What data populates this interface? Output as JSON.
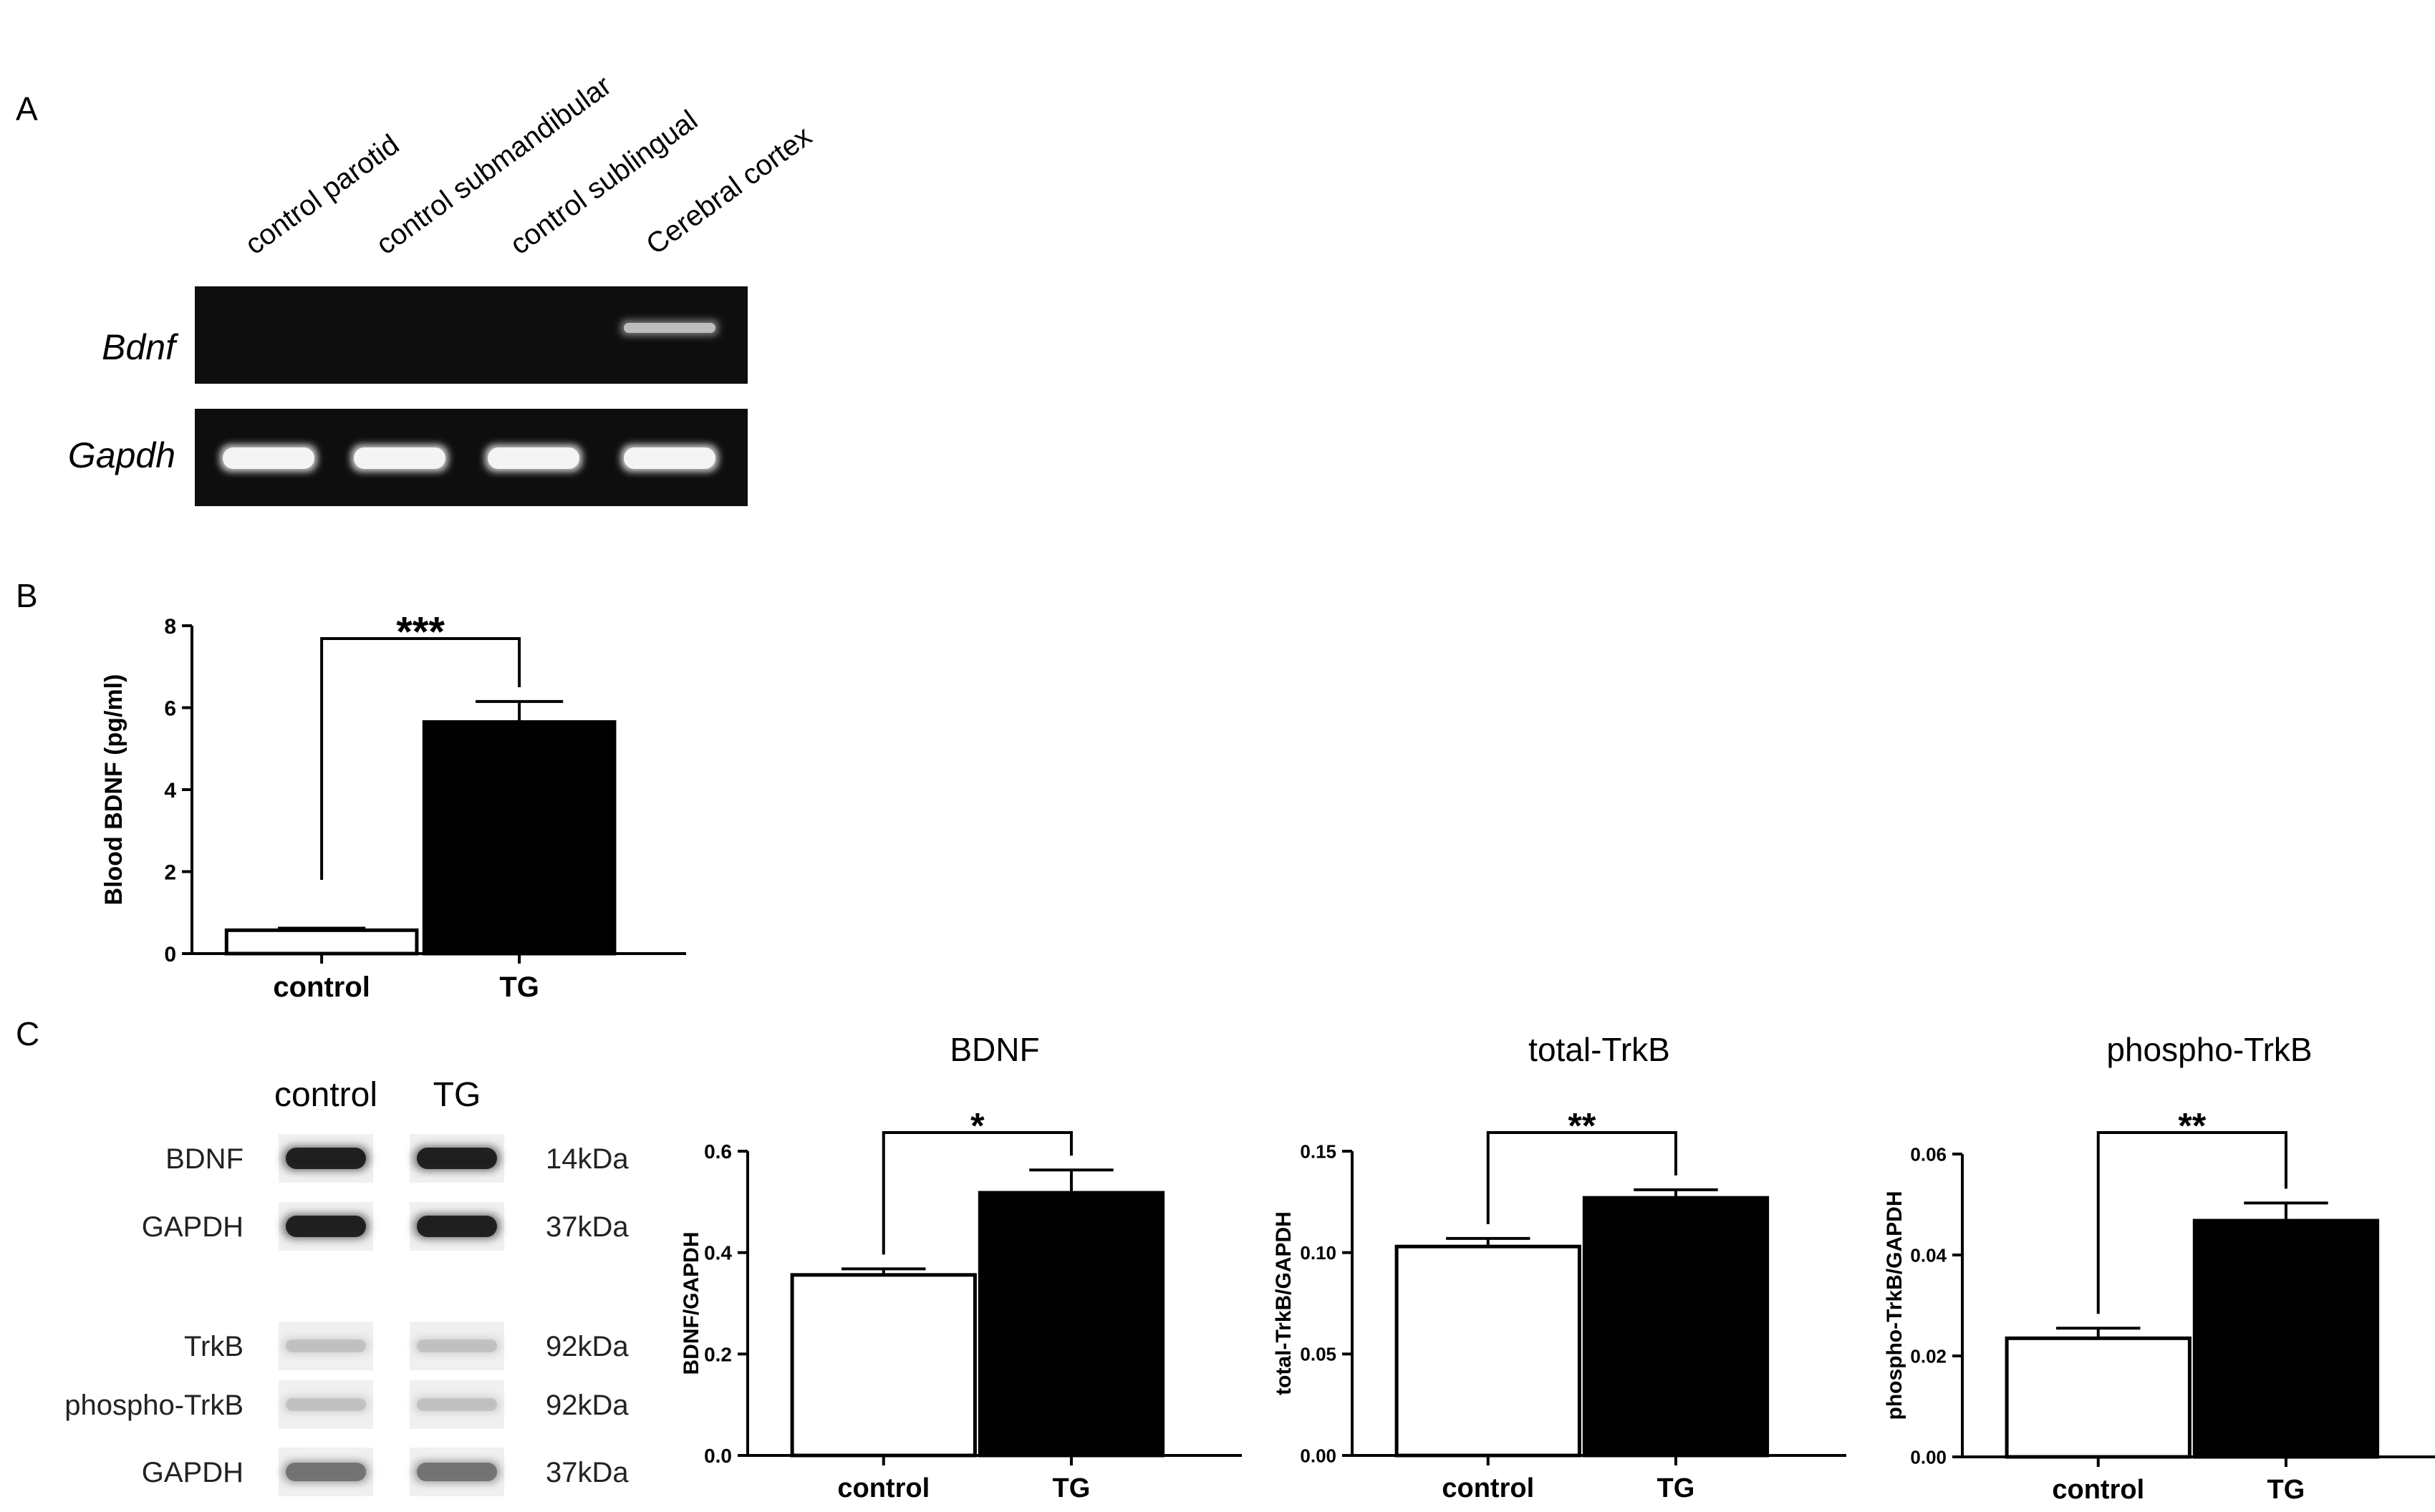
{
  "panel_labels": {
    "a": "A",
    "b": "B",
    "c": "C"
  },
  "panel_a": {
    "lanes": [
      "control parotid",
      "control submandibular",
      "control sublingual",
      "Cerebral cortex"
    ],
    "genes": [
      {
        "label": "Bdnf",
        "band_lanes": [
          0,
          0,
          0,
          1
        ]
      },
      {
        "label": "Gapdh",
        "band_lanes": [
          1,
          1,
          1,
          1
        ]
      }
    ]
  },
  "panel_c_blot": {
    "columns": [
      "control",
      "TG"
    ],
    "rows": [
      {
        "label": "BDNF",
        "size": "14kDa",
        "intensity": "strong"
      },
      {
        "label": "GAPDH",
        "size": "37kDa",
        "intensity": "strong"
      },
      {
        "label": "TrkB",
        "size": "92kDa",
        "intensity": "faint"
      },
      {
        "label": "phospho-TrkB",
        "size": "92kDa",
        "intensity": "faint"
      },
      {
        "label": "GAPDH",
        "size": "37kDa",
        "intensity": "medium"
      }
    ]
  },
  "chart_data": [
    {
      "type": "bar",
      "panel": "B",
      "title": "",
      "categories": [
        "control",
        "TG"
      ],
      "values": [
        0.57,
        5.65
      ],
      "errors": [
        0.05,
        0.5
      ],
      "bar_fills": [
        "#ffffff",
        "#000000"
      ],
      "ylabel": "Blood BDNF (pg/ml)",
      "ylim": [
        0,
        8
      ],
      "yticks": [
        "0",
        "2",
        "4",
        "6",
        "8"
      ],
      "significance": "***"
    },
    {
      "type": "bar",
      "panel": "C",
      "title": "BDNF",
      "categories": [
        "control",
        "TG"
      ],
      "values": [
        0.356,
        0.518
      ],
      "errors": [
        0.012,
        0.045
      ],
      "bar_fills": [
        "#ffffff",
        "#000000"
      ],
      "ylabel": "BDNF/GAPDH",
      "ylim": [
        0,
        0.6
      ],
      "yticks": [
        "0.0",
        "0.2",
        "0.4",
        "0.6"
      ],
      "significance": "*"
    },
    {
      "type": "bar",
      "panel": "C",
      "title": "total-TrkB",
      "categories": [
        "control",
        "TG"
      ],
      "values": [
        0.103,
        0.127
      ],
      "errors": [
        0.004,
        0.004
      ],
      "bar_fills": [
        "#ffffff",
        "#000000"
      ],
      "ylabel": "total-TrkB/GAPDH",
      "ylim": [
        0,
        0.15
      ],
      "yticks": [
        "0.00",
        "0.05",
        "0.10",
        "0.15"
      ],
      "significance": "**"
    },
    {
      "type": "bar",
      "panel": "C",
      "title": "phospho-TrkB",
      "categories": [
        "control",
        "TG"
      ],
      "values": [
        0.0235,
        0.0468
      ],
      "errors": [
        0.002,
        0.0035
      ],
      "bar_fills": [
        "#ffffff",
        "#000000"
      ],
      "ylabel": "phospho-TrkB/GAPDH",
      "ylim": [
        0,
        0.06
      ],
      "yticks": [
        "0.00",
        "0.02",
        "0.04",
        "0.06"
      ],
      "significance": "**"
    }
  ]
}
